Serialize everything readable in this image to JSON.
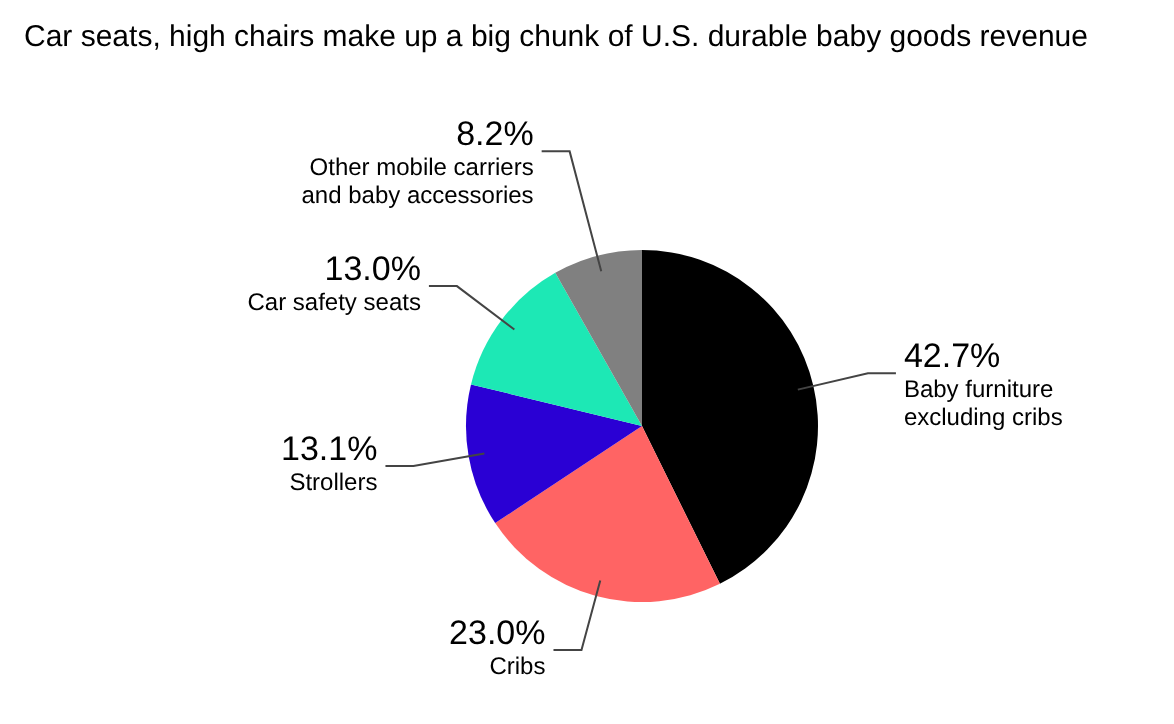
{
  "chart_data": {
    "type": "pie",
    "title": "Car seats, high chairs make up a big chunk of U.S. durable baby goods revenue",
    "categories": [
      "Baby furniture excluding cribs",
      "Cribs",
      "Strollers",
      "Car safety seats",
      "Other mobile carriers and baby accessories"
    ],
    "values": [
      42.7,
      23.0,
      13.1,
      13.0,
      8.2
    ],
    "value_labels": [
      "42.7%",
      "23.0%",
      "13.1%",
      "13.0%",
      "8.2%"
    ],
    "colors": [
      "#000000",
      "#ff6464",
      "#2a00d4",
      "#1de8b5",
      "#808080"
    ],
    "legend": false
  }
}
